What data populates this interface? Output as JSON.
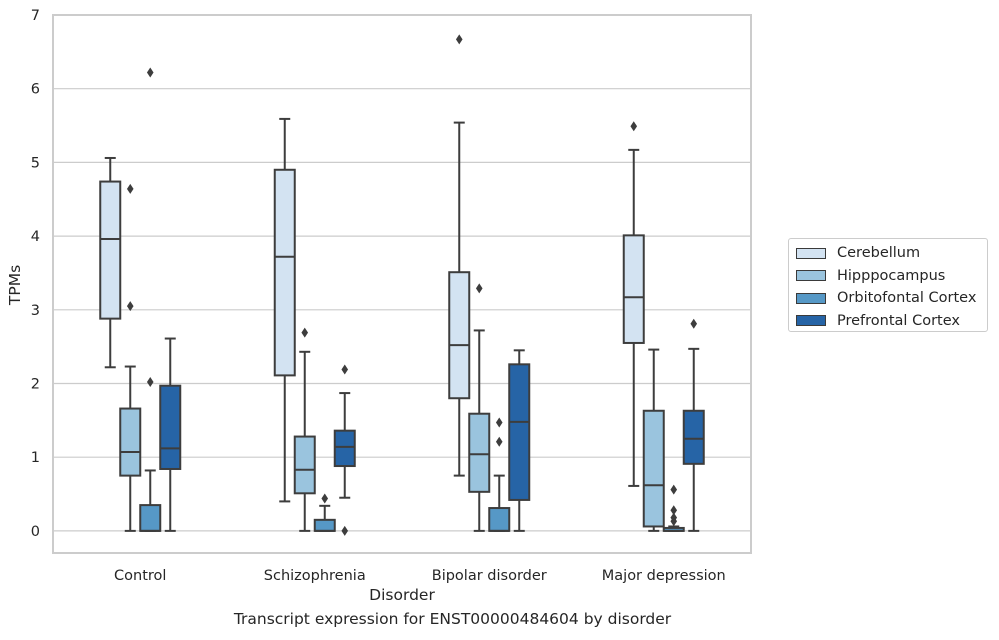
{
  "chart_data": {
    "type": "box",
    "title": "",
    "caption": "Transcript expression for ENST00000484604 by disorder",
    "xlabel": "Disorder",
    "ylabel": "TPMs",
    "ylim": [
      -0.3,
      7
    ],
    "yticks": [
      0,
      1,
      2,
      3,
      4,
      5,
      6,
      7
    ],
    "grid": "horizontal",
    "legend_position": "right",
    "categories": [
      "Control",
      "Schizophrenia",
      "Bipolar disorder",
      "Major depression"
    ],
    "series": [
      {
        "name": "Cerebellum",
        "color": "#d3e3f2",
        "boxes": [
          {
            "whisker_low": 2.22,
            "q1": 2.88,
            "median": 3.96,
            "q3": 4.74,
            "whisker_high": 5.06,
            "outliers": []
          },
          {
            "whisker_low": 0.4,
            "q1": 2.11,
            "median": 3.72,
            "q3": 4.9,
            "whisker_high": 5.59,
            "outliers": []
          },
          {
            "whisker_low": 0.75,
            "q1": 1.8,
            "median": 2.52,
            "q3": 3.51,
            "whisker_high": 5.54,
            "outliers": [
              6.67
            ]
          },
          {
            "whisker_low": 0.61,
            "q1": 2.55,
            "median": 3.17,
            "q3": 4.01,
            "whisker_high": 5.17,
            "outliers": [
              5.49
            ]
          }
        ]
      },
      {
        "name": "Hipppocampus",
        "color": "#9ac4de",
        "boxes": [
          {
            "whisker_low": 0.0,
            "q1": 0.75,
            "median": 1.07,
            "q3": 1.66,
            "whisker_high": 2.23,
            "outliers": [
              3.05,
              4.64
            ]
          },
          {
            "whisker_low": 0.0,
            "q1": 0.51,
            "median": 0.83,
            "q3": 1.28,
            "whisker_high": 2.43,
            "outliers": [
              2.69
            ]
          },
          {
            "whisker_low": 0.0,
            "q1": 0.53,
            "median": 1.04,
            "q3": 1.59,
            "whisker_high": 2.72,
            "outliers": [
              3.29
            ]
          },
          {
            "whisker_low": 0.0,
            "q1": 0.06,
            "median": 0.62,
            "q3": 1.63,
            "whisker_high": 2.46,
            "outliers": []
          }
        ]
      },
      {
        "name": "Orbitofontal Cortex",
        "color": "#5698c6",
        "boxes": [
          {
            "whisker_low": 0.0,
            "q1": 0.0,
            "median": 0.0,
            "q3": 0.35,
            "whisker_high": 0.82,
            "outliers": [
              2.02,
              6.22
            ]
          },
          {
            "whisker_low": 0.0,
            "q1": 0.0,
            "median": 0.0,
            "q3": 0.15,
            "whisker_high": 0.34,
            "outliers": [
              0.44
            ]
          },
          {
            "whisker_low": 0.0,
            "q1": 0.0,
            "median": 0.0,
            "q3": 0.31,
            "whisker_high": 0.75,
            "outliers": [
              1.21,
              1.47
            ]
          },
          {
            "whisker_low": 0.0,
            "q1": 0.0,
            "median": 0.0,
            "q3": 0.04,
            "whisker_high": 0.06,
            "outliers": [
              0.13,
              0.18,
              0.28,
              0.56
            ]
          }
        ]
      },
      {
        "name": "Prefrontal Cortex",
        "color": "#2664a6",
        "boxes": [
          {
            "whisker_low": 0.0,
            "q1": 0.84,
            "median": 1.12,
            "q3": 1.97,
            "whisker_high": 2.61,
            "outliers": []
          },
          {
            "whisker_low": 0.45,
            "q1": 0.88,
            "median": 1.14,
            "q3": 1.36,
            "whisker_high": 1.87,
            "outliers": [
              0.0,
              2.19
            ]
          },
          {
            "whisker_low": 0.0,
            "q1": 0.42,
            "median": 1.48,
            "q3": 2.26,
            "whisker_high": 2.45,
            "outliers": []
          },
          {
            "whisker_low": 0.0,
            "q1": 0.91,
            "median": 1.25,
            "q3": 1.63,
            "whisker_high": 2.47,
            "outliers": [
              2.81
            ]
          }
        ]
      }
    ]
  }
}
